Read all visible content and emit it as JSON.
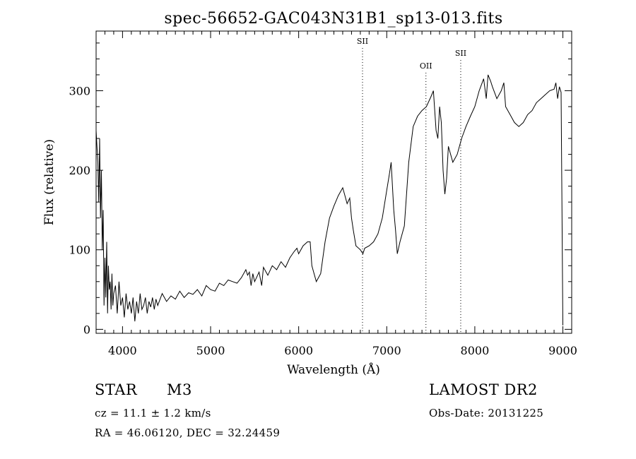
{
  "chart_data": {
    "type": "line",
    "title": "spec-56652-GAC043N31B1_sp13-013.fits",
    "xlabel": "Wavelength (Å)",
    "ylabel": "Flux (relative)",
    "xlim": [
      3700,
      9100
    ],
    "ylim": [
      -5,
      375
    ],
    "xticks": [
      4000,
      5000,
      6000,
      7000,
      8000,
      9000
    ],
    "yticks": [
      0,
      100,
      200,
      300
    ],
    "grid": false,
    "line_color": "#000000",
    "annotations": [
      {
        "label": "SII",
        "x": 6725
      },
      {
        "label": "OII",
        "x": 7445
      },
      {
        "label": "SII",
        "x": 7840
      }
    ],
    "series": [
      {
        "x": [
          3700,
          3710,
          3720,
          3730,
          3740,
          3750,
          3760,
          3770,
          3780,
          3790,
          3800,
          3810,
          3820,
          3830,
          3840,
          3850,
          3860,
          3870,
          3880,
          3890,
          3900,
          3920,
          3940,
          3960,
          3980,
          4000,
          4020,
          4040,
          4060,
          4080,
          4100,
          4120,
          4140,
          4160,
          4180,
          4200,
          4220,
          4240,
          4260,
          4280,
          4300,
          4320,
          4340,
          4360,
          4380,
          4400,
          4450,
          4500,
          4550,
          4600,
          4650,
          4700,
          4750,
          4800,
          4850,
          4900,
          4950,
          5000,
          5050,
          5100,
          5150,
          5200,
          5250,
          5300,
          5350,
          5400,
          5420,
          5440,
          5460,
          5480,
          5500,
          5550,
          5580,
          5600,
          5650,
          5700,
          5750,
          5800,
          5850,
          5900,
          5950,
          5980,
          6000,
          6050,
          6100,
          6130,
          6150,
          6200,
          6250,
          6300,
          6350,
          6400,
          6450,
          6500,
          6520,
          6550,
          6580,
          6600,
          6620,
          6650,
          6700,
          6730,
          6750,
          6800,
          6850,
          6900,
          6950,
          7000,
          7030,
          7050,
          7080,
          7100,
          7120,
          7150,
          7200,
          7250,
          7300,
          7350,
          7400,
          7450,
          7500,
          7530,
          7560,
          7580,
          7600,
          7620,
          7640,
          7660,
          7680,
          7700,
          7750,
          7800,
          7850,
          7900,
          7950,
          8000,
          8050,
          8100,
          8130,
          8150,
          8180,
          8200,
          8250,
          8300,
          8330,
          8350,
          8400,
          8450,
          8500,
          8550,
          8600,
          8650,
          8700,
          8750,
          8800,
          8850,
          8900,
          8920,
          8940,
          8960,
          8980,
          9000
        ],
        "y": [
          250,
          230,
          210,
          160,
          240,
          140,
          200,
          100,
          150,
          30,
          90,
          40,
          110,
          20,
          80,
          50,
          60,
          25,
          70,
          30,
          45,
          55,
          20,
          60,
          30,
          40,
          15,
          45,
          25,
          35,
          20,
          40,
          10,
          35,
          20,
          45,
          25,
          30,
          40,
          20,
          35,
          28,
          40,
          25,
          38,
          30,
          45,
          35,
          42,
          38,
          48,
          40,
          46,
          44,
          50,
          42,
          55,
          50,
          48,
          58,
          55,
          62,
          60,
          58,
          65,
          75,
          68,
          72,
          55,
          70,
          60,
          72,
          55,
          78,
          68,
          80,
          75,
          85,
          78,
          90,
          98,
          102,
          95,
          105,
          110,
          110,
          80,
          60,
          70,
          110,
          140,
          155,
          168,
          178,
          170,
          158,
          165,
          140,
          125,
          105,
          100,
          95,
          102,
          105,
          110,
          120,
          140,
          175,
          195,
          210,
          150,
          125,
          95,
          110,
          130,
          210,
          255,
          268,
          275,
          280,
          292,
          300,
          250,
          240,
          280,
          260,
          200,
          170,
          190,
          230,
          210,
          220,
          240,
          255,
          268,
          280,
          300,
          315,
          290,
          320,
          312,
          305,
          290,
          300,
          310,
          280,
          270,
          260,
          255,
          260,
          270,
          275,
          285,
          290,
          295,
          300,
          302,
          310,
          290,
          305,
          298,
          5
        ]
      }
    ],
    "footer": {
      "object_label": "STAR",
      "object_class": "M3",
      "survey": "LAMOST DR2",
      "cz": "cz = 11.1 ± 1.2 km/s",
      "obs_date": "Obs-Date: 20131225",
      "radec": "RA =  46.06120, DEC =  32.24459"
    }
  }
}
